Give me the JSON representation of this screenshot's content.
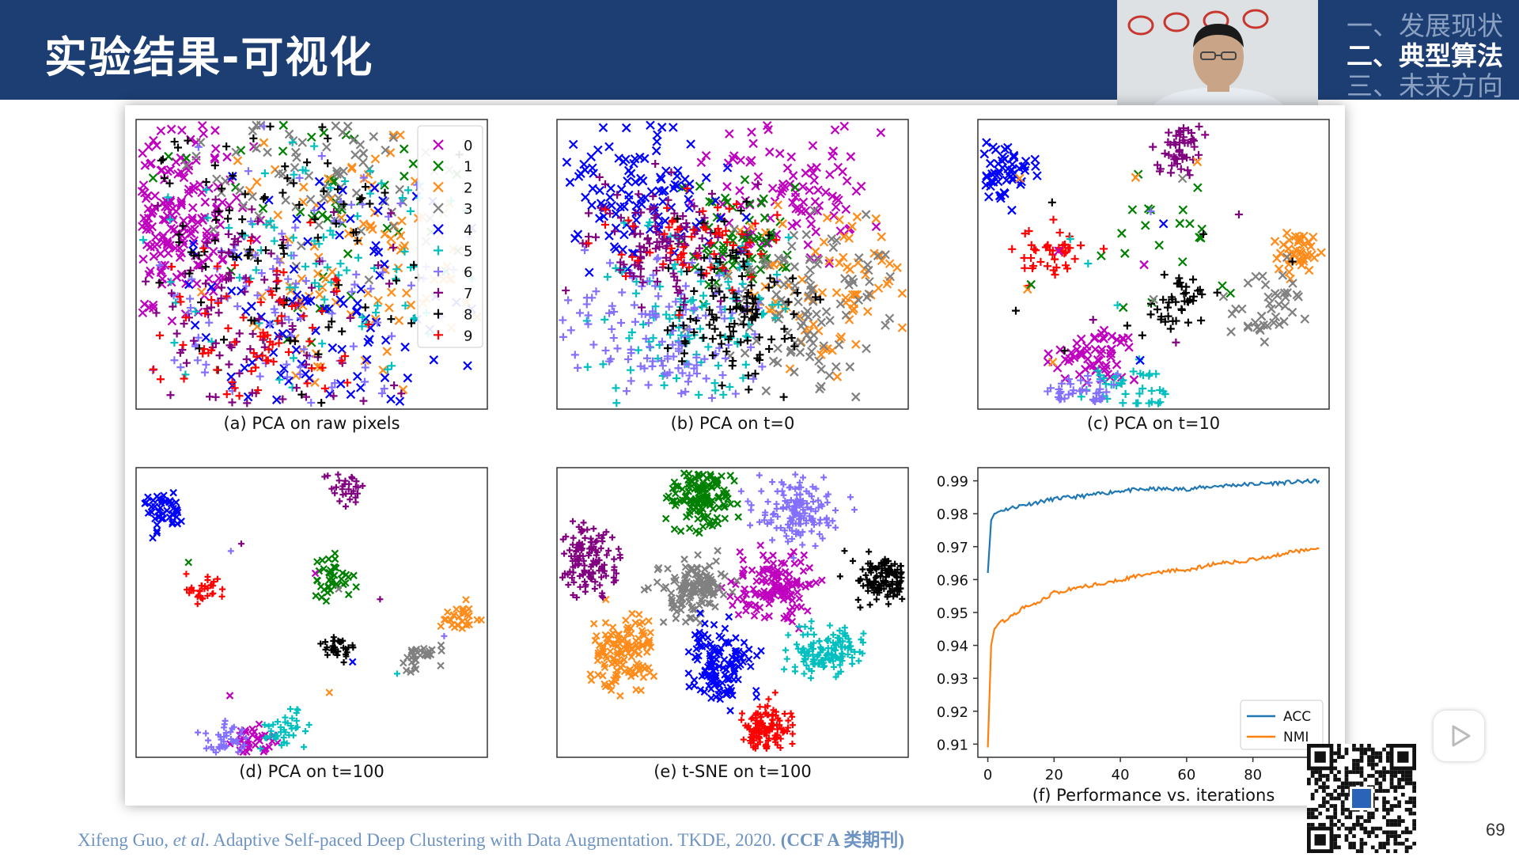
{
  "header": {
    "title": "实验结果-可视化",
    "background": "#1d3e73",
    "outline": [
      {
        "label": "一、发展现状",
        "active": false
      },
      {
        "label": "二、典型算法",
        "active": true
      },
      {
        "label": "三、未来方向",
        "active": false
      }
    ]
  },
  "figure": {
    "panels": [
      {
        "caption": "(a) PCA on raw pixels"
      },
      {
        "caption": "(b) PCA on t=0"
      },
      {
        "caption": "(c) PCA on t=10"
      },
      {
        "caption": "(d) PCA on t=100"
      },
      {
        "caption": "(e) t-SNE on t=100"
      }
    ],
    "legend": {
      "entries": [
        {
          "label": "0",
          "marker": "x",
          "color": "#bf00bf"
        },
        {
          "label": "1",
          "marker": "x",
          "color": "#008000"
        },
        {
          "label": "2",
          "marker": "x",
          "color": "#ff8c1a"
        },
        {
          "label": "3",
          "marker": "x",
          "color": "#808080"
        },
        {
          "label": "4",
          "marker": "x",
          "color": "#0000ff"
        },
        {
          "label": "5",
          "marker": "+",
          "color": "#00bfbf"
        },
        {
          "label": "6",
          "marker": "+",
          "color": "#8470ff"
        },
        {
          "label": "7",
          "marker": "+",
          "color": "#800080"
        },
        {
          "label": "8",
          "marker": "+",
          "color": "#000000"
        },
        {
          "label": "9",
          "marker": "+",
          "color": "#ff0000"
        }
      ]
    }
  },
  "chart_data": {
    "type": "line",
    "title": "(f) Performance vs. iterations",
    "xlabel": "",
    "ylabel": "",
    "x_ticks": [
      "0",
      "20",
      "40",
      "60",
      "80",
      "1"
    ],
    "y_ticks": [
      "0.91",
      "0.92",
      "0.93",
      "0.94",
      "0.95",
      "0.96",
      "0.97",
      "0.98",
      "0.99"
    ],
    "xlim": [
      -3,
      103
    ],
    "ylim": [
      0.906,
      0.994
    ],
    "legend_position": "bottom-right",
    "x": [
      0,
      1,
      2,
      4,
      6,
      10,
      15,
      20,
      30,
      40,
      50,
      60,
      70,
      80,
      90,
      100
    ],
    "series": [
      {
        "name": "ACC",
        "color": "#1f77b4",
        "values": [
          0.962,
          0.978,
          0.98,
          0.981,
          0.9815,
          0.9825,
          0.9835,
          0.9845,
          0.9855,
          0.987,
          0.9875,
          0.9875,
          0.9885,
          0.989,
          0.9895,
          0.99
        ]
      },
      {
        "name": "NMI",
        "color": "#ff7f0e",
        "values": [
          0.909,
          0.94,
          0.945,
          0.947,
          0.948,
          0.951,
          0.953,
          0.956,
          0.958,
          0.96,
          0.962,
          0.963,
          0.965,
          0.966,
          0.968,
          0.97
        ]
      }
    ]
  },
  "citation": {
    "authors": "Xifeng Guo, ",
    "etal": "et al",
    "title": ". Adaptive Self-paced Deep Clustering with Data Augmentation. TKDE, 2020. ",
    "venue": "(CCF A 类期刊)"
  },
  "slide_number": "69"
}
